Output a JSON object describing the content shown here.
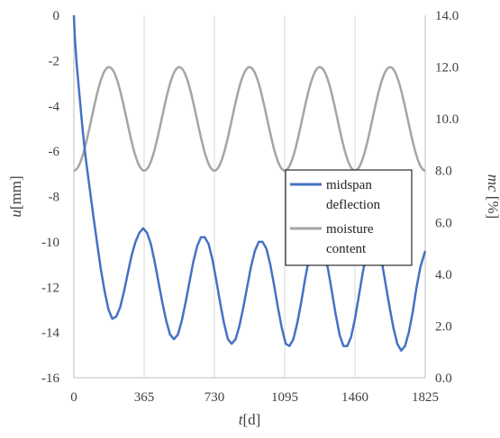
{
  "chart_data": {
    "type": "line",
    "title": "",
    "xlabel": {
      "var": "t",
      "unit": "[d]"
    },
    "ylabel_left": {
      "var": "u",
      "unit": "[mm]"
    },
    "ylabel_right": {
      "var": "mc",
      "unit": " [%]"
    },
    "x_ticks": [
      "0",
      "365",
      "730",
      "1095",
      "1460",
      "1825"
    ],
    "x_tick_values": [
      0,
      365,
      730,
      1095,
      1460,
      1825
    ],
    "xlim": [
      0,
      1825
    ],
    "y_left_ticks": [
      "0",
      "-2",
      "-4",
      "-6",
      "-8",
      "-10",
      "-12",
      "-14",
      "-16"
    ],
    "y_left_tick_values": [
      0,
      -2,
      -4,
      -6,
      -8,
      -10,
      -12,
      -14,
      -16
    ],
    "ylim_left": [
      -16,
      0
    ],
    "y_right_ticks": [
      "14.0",
      "12.0",
      "10.0",
      "8.0",
      "6.0",
      "4.0",
      "2.0",
      "0.0"
    ],
    "y_right_tick_values": [
      14,
      12,
      10,
      8,
      6,
      4,
      2,
      0
    ],
    "ylim_right": [
      0,
      14
    ],
    "grid": "vertical",
    "legend_position": "right",
    "series": [
      {
        "name": "midspan deflection",
        "legend_lines": [
          "midspan",
          "deflection"
        ],
        "axis": "left",
        "color": "#4472C4",
        "x": [
          0,
          5,
          15,
          30,
          45,
          60,
          80,
          100,
          120,
          140,
          160,
          180,
          200,
          220,
          240,
          260,
          280,
          300,
          320,
          340,
          360,
          380,
          400,
          420,
          440,
          460,
          480,
          500,
          520,
          540,
          560,
          580,
          600,
          620,
          640,
          660,
          680,
          700,
          720,
          740,
          760,
          780,
          800,
          820,
          840,
          860,
          880,
          900,
          920,
          940,
          960,
          980,
          1000,
          1020,
          1040,
          1060,
          1080,
          1100,
          1120,
          1140,
          1160,
          1180,
          1200,
          1220,
          1240,
          1260,
          1280,
          1300,
          1320,
          1340,
          1360,
          1380,
          1400,
          1420,
          1440,
          1460,
          1480,
          1500,
          1520,
          1540,
          1560,
          1580,
          1600,
          1620,
          1640,
          1660,
          1680,
          1700,
          1720,
          1740,
          1760,
          1780,
          1800,
          1825
        ],
        "y": [
          0,
          -1.0,
          -2.2,
          -3.6,
          -5.0,
          -6.2,
          -7.5,
          -8.8,
          -10.0,
          -11.2,
          -12.2,
          -13.0,
          -13.4,
          -13.3,
          -12.9,
          -12.2,
          -11.4,
          -10.6,
          -10.0,
          -9.6,
          -9.4,
          -9.6,
          -10.1,
          -10.9,
          -11.8,
          -12.7,
          -13.5,
          -14.1,
          -14.3,
          -14.1,
          -13.5,
          -12.7,
          -11.8,
          -10.9,
          -10.2,
          -9.8,
          -9.8,
          -10.1,
          -10.8,
          -11.7,
          -12.7,
          -13.6,
          -14.3,
          -14.5,
          -14.3,
          -13.7,
          -12.9,
          -12.0,
          -11.1,
          -10.4,
          -10.0,
          -10.0,
          -10.3,
          -11.0,
          -11.9,
          -12.9,
          -13.8,
          -14.5,
          -14.6,
          -14.3,
          -13.6,
          -12.7,
          -11.7,
          -10.8,
          -10.1,
          -9.8,
          -9.9,
          -10.4,
          -11.2,
          -12.2,
          -13.2,
          -14.1,
          -14.6,
          -14.6,
          -14.2,
          -13.4,
          -12.4,
          -11.4,
          -10.5,
          -10.0,
          -9.9,
          -10.2,
          -10.9,
          -11.9,
          -12.9,
          -13.8,
          -14.5,
          -14.8,
          -14.6,
          -14.0,
          -13.1,
          -12.0,
          -11.1,
          -10.4
        ]
      },
      {
        "name": "moisture content",
        "legend_lines": [
          "moisture",
          "content"
        ],
        "axis": "right",
        "color": "#A5A5A5",
        "x": [
          0,
          1825
        ],
        "function": "sine",
        "min": 8.0,
        "max": 12.0,
        "trough_at": 0,
        "period": 365
      }
    ]
  }
}
